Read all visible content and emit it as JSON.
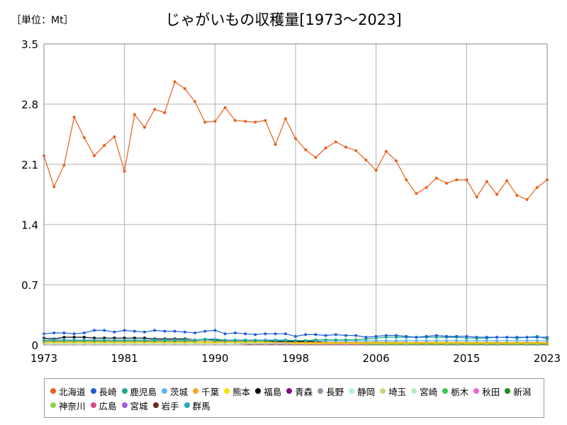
{
  "unit_label": "［単位：Mt］",
  "chart_data": {
    "type": "line",
    "title": "じゃがいもの収穫量[1973～2023]",
    "xlabel": "",
    "ylabel": "",
    "xlim": [
      1973,
      2023
    ],
    "ylim": [
      0,
      3.5
    ],
    "x_ticks": [
      1973,
      1981,
      1990,
      1998,
      2006,
      2015,
      2023
    ],
    "y_ticks": [
      0,
      0.7,
      1.4,
      2.1,
      2.8,
      3.5
    ],
    "y_tick_labels": [
      "0",
      "0.7",
      "1.4",
      "2.1",
      "2.8",
      "3.5"
    ],
    "grid": true,
    "legend_position": "bottom",
    "x": [
      1973,
      1974,
      1975,
      1976,
      1977,
      1978,
      1979,
      1980,
      1981,
      1982,
      1983,
      1984,
      1985,
      1986,
      1987,
      1988,
      1989,
      1990,
      1991,
      1992,
      1993,
      1994,
      1995,
      1996,
      1997,
      1998,
      1999,
      2000,
      2001,
      2002,
      2003,
      2004,
      2005,
      2006,
      2007,
      2008,
      2009,
      2010,
      2011,
      2012,
      2013,
      2014,
      2015,
      2016,
      2017,
      2018,
      2019,
      2020,
      2021,
      2022,
      2023
    ],
    "series": [
      {
        "name": "北海道",
        "color": "#e8601c",
        "values": [
          2.2,
          1.84,
          2.09,
          2.65,
          2.41,
          2.2,
          2.32,
          2.42,
          2.02,
          2.68,
          2.53,
          2.74,
          2.7,
          3.06,
          2.98,
          2.83,
          2.59,
          2.6,
          2.76,
          2.61,
          2.6,
          2.59,
          2.61,
          2.33,
          2.63,
          2.4,
          2.27,
          2.18,
          2.29,
          2.36,
          2.3,
          2.26,
          2.15,
          2.03,
          2.25,
          2.14,
          1.92,
          1.76,
          1.83,
          1.94,
          1.88,
          1.92,
          1.92,
          1.72,
          1.9,
          1.75,
          1.91,
          1.74,
          1.69,
          1.83,
          1.92
        ]
      },
      {
        "name": "長崎",
        "color": "#1f5fd6",
        "values": [
          0.13,
          0.14,
          0.14,
          0.13,
          0.14,
          0.17,
          0.17,
          0.15,
          0.17,
          0.16,
          0.15,
          0.17,
          0.16,
          0.16,
          0.15,
          0.14,
          0.16,
          0.17,
          0.13,
          0.14,
          0.13,
          0.12,
          0.13,
          0.13,
          0.13,
          0.1,
          0.12,
          0.12,
          0.11,
          0.12,
          0.11,
          0.11,
          0.09,
          0.1,
          0.11,
          0.11,
          0.1,
          0.09,
          0.1,
          0.11,
          0.1,
          0.1,
          0.1,
          0.09,
          0.09,
          0.09,
          0.09,
          0.09,
          0.09,
          0.09,
          0.09
        ]
      },
      {
        "name": "鹿児島",
        "color": "#1aab8a",
        "values": [
          0.05,
          0.05,
          0.05,
          0.05,
          0.05,
          0.05,
          0.05,
          0.05,
          0.05,
          0.05,
          0.05,
          0.05,
          0.05,
          0.05,
          0.05,
          0.05,
          0.06,
          0.05,
          0.05,
          0.05,
          0.05,
          0.05,
          0.05,
          0.05,
          0.05,
          0.05,
          0.05,
          0.06,
          0.06,
          0.06,
          0.06,
          0.06,
          0.07,
          0.08,
          0.09,
          0.09,
          0.09,
          0.09,
          0.09,
          0.09,
          0.09,
          0.09,
          0.08,
          0.08,
          0.08,
          0.09,
          0.09,
          0.08,
          0.09,
          0.1,
          0.07
        ]
      },
      {
        "name": "茨城",
        "color": "#59b9f0",
        "values": [
          0.06,
          0.06,
          0.06,
          0.06,
          0.06,
          0.06,
          0.06,
          0.06,
          0.06,
          0.06,
          0.06,
          0.06,
          0.06,
          0.06,
          0.06,
          0.06,
          0.07,
          0.07,
          0.06,
          0.06,
          0.06,
          0.06,
          0.06,
          0.06,
          0.06,
          0.05,
          0.05,
          0.05,
          0.05,
          0.05,
          0.05,
          0.05,
          0.05,
          0.05,
          0.05,
          0.05,
          0.05,
          0.05,
          0.05,
          0.05,
          0.05,
          0.05,
          0.05,
          0.05,
          0.05,
          0.05,
          0.05,
          0.05,
          0.05,
          0.05,
          0.05
        ]
      },
      {
        "name": "千葉",
        "color": "#f5a623",
        "values": [
          0.04,
          0.04,
          0.04,
          0.04,
          0.04,
          0.04,
          0.04,
          0.04,
          0.04,
          0.04,
          0.04,
          0.04,
          0.04,
          0.04,
          0.04,
          0.04,
          0.04,
          0.04,
          0.04,
          0.04,
          0.04,
          0.04,
          0.04,
          0.03,
          0.03,
          0.03,
          0.03,
          0.03,
          0.03,
          0.03,
          0.03,
          0.03,
          0.03,
          0.03,
          0.03,
          0.03,
          0.03,
          0.03,
          0.03,
          0.03,
          0.03,
          0.03,
          0.03,
          0.03,
          0.03,
          0.03,
          0.03,
          0.03,
          0.03,
          0.03,
          0.03
        ]
      },
      {
        "name": "熊本",
        "color": "#f2e600",
        "values": [
          0.03,
          0.03,
          0.03,
          0.03,
          0.03,
          0.03,
          0.03,
          0.03,
          0.03,
          0.03,
          0.03,
          0.03,
          0.03,
          0.03,
          0.03,
          0.03,
          0.03,
          0.03,
          0.03,
          0.03,
          0.03,
          0.03,
          0.03,
          0.03,
          0.03,
          0.02,
          0.02,
          0.02,
          0.02,
          0.02,
          0.02,
          0.02,
          0.02,
          0.02,
          0.02,
          0.02,
          0.02,
          0.02,
          0.02,
          0.02,
          0.02,
          0.02,
          0.02,
          0.02,
          0.02,
          0.02,
          0.02,
          0.02,
          0.02,
          0.02,
          0.02
        ]
      },
      {
        "name": "福島",
        "color": "#000000",
        "values": [
          0.08,
          0.07,
          0.09,
          0.09,
          0.09,
          0.08,
          0.08,
          0.08,
          0.08,
          0.08,
          0.08,
          0.07,
          0.07,
          0.07,
          0.07,
          0.06,
          0.06,
          0.06,
          0.05,
          0.05,
          0.05,
          0.05,
          0.04,
          0.04,
          0.04,
          0.04,
          0.04,
          0.04,
          0.03,
          0.03,
          0.03,
          0.03,
          0.03,
          0.03,
          0.03,
          0.03,
          0.03,
          0.02,
          0.02,
          0.02,
          0.02,
          0.02,
          0.02,
          0.02,
          0.02,
          0.02,
          0.02,
          0.02,
          0.02,
          0.02,
          0.02
        ]
      },
      {
        "name": "青森",
        "color": "#8b0a8b",
        "values": [
          0.04,
          0.04,
          0.04,
          0.04,
          0.04,
          0.04,
          0.04,
          0.04,
          0.04,
          0.04,
          0.04,
          0.04,
          0.04,
          0.04,
          0.04,
          0.04,
          0.04,
          0.04,
          0.03,
          0.03,
          0.03,
          0.03,
          0.03,
          0.03,
          0.03,
          0.03,
          0.03,
          0.03,
          0.02,
          0.02,
          0.02,
          0.02,
          0.02,
          0.02,
          0.02,
          0.02,
          0.02,
          0.02,
          0.02,
          0.02,
          0.02,
          0.02,
          0.02,
          0.02,
          0.02,
          0.02,
          0.02,
          0.02,
          0.02,
          0.02,
          0.02
        ]
      },
      {
        "name": "長野",
        "color": "#8899aa",
        "values": [
          0.04,
          0.04,
          0.04,
          0.04,
          0.04,
          0.04,
          0.04,
          0.04,
          0.04,
          0.04,
          0.04,
          0.04,
          0.04,
          0.03,
          0.03,
          0.03,
          0.03,
          0.03,
          0.03,
          0.03,
          0.03,
          0.03,
          0.03,
          0.03,
          0.03,
          0.03,
          0.03,
          0.03,
          0.03,
          0.03,
          0.03,
          0.02,
          0.02,
          0.02,
          0.02,
          0.02,
          0.02,
          0.02,
          0.02,
          0.02,
          0.02,
          0.02,
          0.02,
          0.02,
          0.02,
          0.02,
          0.02,
          0.02,
          0.02,
          0.02,
          0.02
        ]
      },
      {
        "name": "静岡",
        "color": "#a8f0e8",
        "values": [
          0.03,
          0.03,
          0.03,
          0.03,
          0.03,
          0.03,
          0.03,
          0.03,
          0.03,
          0.03,
          0.03,
          0.03,
          0.03,
          0.03,
          0.03,
          0.03,
          0.03,
          0.03,
          0.02,
          0.02,
          0.02,
          0.02,
          0.02,
          0.02,
          0.02,
          0.02,
          0.02,
          0.02,
          0.02,
          0.02,
          0.02,
          0.02,
          0.02,
          0.02,
          0.02,
          0.02,
          0.02,
          0.02,
          0.02,
          0.02,
          0.02,
          0.02,
          0.02,
          0.02,
          0.02,
          0.02,
          0.02,
          0.02,
          0.02,
          0.02,
          0.02
        ]
      },
      {
        "name": "埼玉",
        "color": "#c5d68a",
        "values": [
          0.03,
          0.03,
          0.03,
          0.03,
          0.03,
          0.03,
          0.03,
          0.03,
          0.03,
          0.03,
          0.03,
          0.03,
          0.03,
          0.03,
          0.03,
          0.03,
          0.03,
          0.02,
          0.02,
          0.02,
          0.02,
          0.02,
          0.02,
          0.02,
          0.02,
          0.02,
          0.02,
          0.02,
          0.02,
          0.02,
          0.02,
          0.02,
          0.02,
          0.02,
          0.02,
          0.02,
          0.02,
          0.02,
          0.02,
          0.02,
          0.02,
          0.02,
          0.02,
          0.02,
          0.02,
          0.02,
          0.02,
          0.02,
          0.02,
          0.02,
          0.02
        ]
      },
      {
        "name": "宮崎",
        "color": "#b5ecc0",
        "values": [
          0.02,
          0.02,
          0.02,
          0.02,
          0.02,
          0.02,
          0.02,
          0.02,
          0.02,
          0.02,
          0.02,
          0.02,
          0.02,
          0.02,
          0.02,
          0.02,
          0.02,
          0.02,
          0.02,
          0.02,
          0.02,
          0.02,
          0.02,
          0.02,
          0.02,
          0.02,
          0.02,
          0.02,
          0.02,
          0.02,
          0.02,
          0.02,
          0.02,
          0.02,
          0.02,
          0.02,
          0.02,
          0.02,
          0.02,
          0.02,
          0.02,
          0.02,
          0.02,
          0.02,
          0.02,
          0.02,
          0.02,
          0.02,
          0.02,
          0.02,
          0.02
        ]
      },
      {
        "name": "栃木",
        "color": "#3cc84a",
        "values": [
          0.02,
          0.02,
          0.02,
          0.02,
          0.02,
          0.02,
          0.02,
          0.02,
          0.02,
          0.02,
          0.02,
          0.02,
          0.02,
          0.02,
          0.02,
          0.02,
          0.02,
          0.02,
          0.02,
          0.02,
          0.02,
          0.02,
          0.02,
          0.02,
          0.02,
          0.02,
          0.02,
          0.02,
          0.02,
          0.02,
          0.02,
          0.02,
          0.01,
          0.01,
          0.01,
          0.01,
          0.01,
          0.01,
          0.01,
          0.01,
          0.01,
          0.01,
          0.01,
          0.01,
          0.01,
          0.01,
          0.01,
          0.01,
          0.01,
          0.01,
          0.01
        ]
      },
      {
        "name": "秋田",
        "color": "#ee66cc",
        "values": [
          0.02,
          0.02,
          0.02,
          0.02,
          0.02,
          0.02,
          0.02,
          0.02,
          0.02,
          0.02,
          0.02,
          0.02,
          0.02,
          0.02,
          0.02,
          0.02,
          0.02,
          0.02,
          0.02,
          0.02,
          0.02,
          0.02,
          0.02,
          0.02,
          0.02,
          0.01,
          0.01,
          0.01,
          0.01,
          0.01,
          0.01,
          0.01,
          0.01,
          0.01,
          0.01,
          0.01,
          0.01,
          0.01,
          0.01,
          0.01,
          0.01,
          0.01,
          0.01,
          0.01,
          0.01,
          0.01,
          0.01,
          0.01,
          0.01,
          0.01,
          0.01
        ]
      },
      {
        "name": "新潟",
        "color": "#1e8c1e",
        "values": [
          0.02,
          0.02,
          0.02,
          0.02,
          0.02,
          0.02,
          0.02,
          0.02,
          0.02,
          0.02,
          0.02,
          0.02,
          0.02,
          0.02,
          0.02,
          0.02,
          0.02,
          0.02,
          0.02,
          0.02,
          0.02,
          0.02,
          0.02,
          0.02,
          0.02,
          0.01,
          0.01,
          0.01,
          0.01,
          0.01,
          0.01,
          0.01,
          0.01,
          0.01,
          0.01,
          0.01,
          0.01,
          0.01,
          0.01,
          0.01,
          0.01,
          0.01,
          0.01,
          0.01,
          0.01,
          0.01,
          0.01,
          0.01,
          0.01,
          0.01,
          0.01
        ]
      },
      {
        "name": "神奈川",
        "color": "#8ed04a",
        "values": [
          0.02,
          0.02,
          0.02,
          0.02,
          0.02,
          0.02,
          0.02,
          0.02,
          0.02,
          0.02,
          0.02,
          0.02,
          0.02,
          0.02,
          0.02,
          0.02,
          0.02,
          0.02,
          0.02,
          0.02,
          0.02,
          0.02,
          0.02,
          0.02,
          0.02,
          0.01,
          0.01,
          0.01,
          0.01,
          0.01,
          0.01,
          0.01,
          0.01,
          0.01,
          0.01,
          0.01,
          0.01,
          0.01,
          0.01,
          0.01,
          0.01,
          0.01,
          0.01,
          0.01,
          0.01,
          0.01,
          0.01,
          0.01,
          0.01,
          0.01,
          0.01
        ]
      },
      {
        "name": "広島",
        "color": "#d64a8a",
        "values": [
          0.02,
          0.02,
          0.02,
          0.02,
          0.02,
          0.02,
          0.02,
          0.02,
          0.02,
          0.02,
          0.02,
          0.02,
          0.02,
          0.02,
          0.02,
          0.02,
          0.02,
          0.02,
          0.02,
          0.02,
          0.01,
          0.01,
          0.01,
          0.01,
          0.01,
          0.01,
          0.01,
          0.01,
          0.01,
          0.01,
          0.01,
          0.01,
          0.01,
          0.01,
          0.01,
          0.01,
          0.01,
          0.01,
          0.01,
          0.01,
          0.01,
          0.01,
          0.01,
          0.01,
          0.01,
          0.01,
          0.01,
          0.01,
          0.01,
          0.01,
          0.01
        ]
      },
      {
        "name": "宮城",
        "color": "#9b5de5",
        "values": [
          0.02,
          0.02,
          0.02,
          0.02,
          0.02,
          0.02,
          0.02,
          0.02,
          0.02,
          0.02,
          0.02,
          0.02,
          0.02,
          0.02,
          0.02,
          0.02,
          0.02,
          0.02,
          0.02,
          0.02,
          0.01,
          0.01,
          0.01,
          0.01,
          0.01,
          0.01,
          0.01,
          0.01,
          0.01,
          0.01,
          0.01,
          0.01,
          0.01,
          0.01,
          0.01,
          0.01,
          0.01,
          0.01,
          0.01,
          0.01,
          0.01,
          0.01,
          0.01,
          0.01,
          0.01,
          0.01,
          0.01,
          0.01,
          0.01,
          0.01,
          0.01
        ]
      },
      {
        "name": "岩手",
        "color": "#6b2a1a",
        "values": [
          0.03,
          0.03,
          0.03,
          0.03,
          0.03,
          0.03,
          0.03,
          0.03,
          0.03,
          0.03,
          0.03,
          0.03,
          0.03,
          0.03,
          0.03,
          0.02,
          0.02,
          0.02,
          0.02,
          0.02,
          0.02,
          0.02,
          0.02,
          0.02,
          0.02,
          0.02,
          0.02,
          0.02,
          0.02,
          0.01,
          0.01,
          0.01,
          0.01,
          0.01,
          0.01,
          0.01,
          0.01,
          0.01,
          0.01,
          0.01,
          0.01,
          0.01,
          0.01,
          0.01,
          0.01,
          0.01,
          0.01,
          0.01,
          0.01,
          0.01,
          0.01
        ]
      },
      {
        "name": "群馬",
        "color": "#2aa8b8",
        "values": [
          0.03,
          0.03,
          0.03,
          0.03,
          0.03,
          0.03,
          0.03,
          0.03,
          0.03,
          0.03,
          0.03,
          0.03,
          0.03,
          0.03,
          0.03,
          0.03,
          0.03,
          0.03,
          0.02,
          0.02,
          0.02,
          0.02,
          0.02,
          0.02,
          0.02,
          0.02,
          0.02,
          0.02,
          0.02,
          0.02,
          0.02,
          0.02,
          0.02,
          0.02,
          0.02,
          0.02,
          0.02,
          0.02,
          0.02,
          0.02,
          0.02,
          0.02,
          0.02,
          0.02,
          0.02,
          0.02,
          0.02,
          0.02,
          0.02,
          0.02,
          0.02
        ]
      }
    ]
  }
}
